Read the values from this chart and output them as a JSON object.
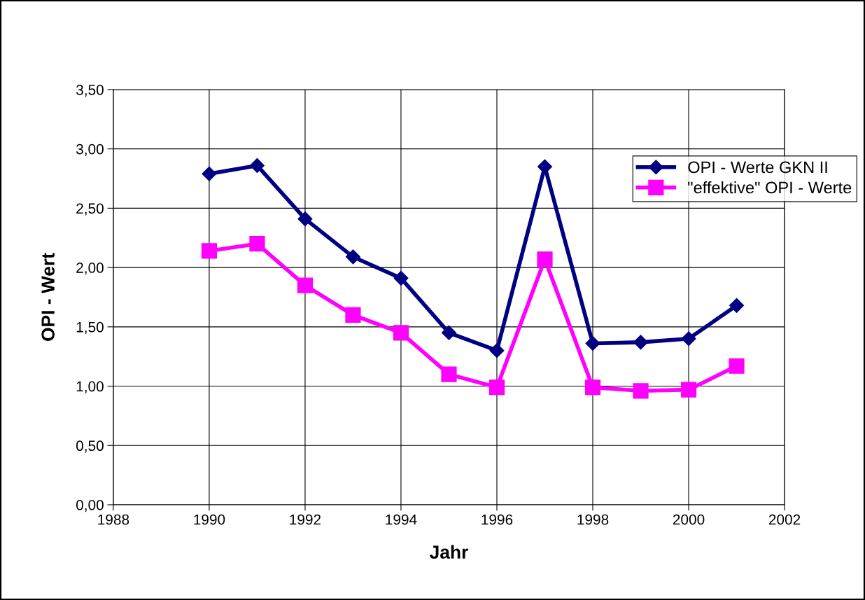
{
  "chart_data": {
    "type": "line",
    "xlabel": "Jahr",
    "ylabel": "OPI - Wert",
    "x": [
      1990,
      1991,
      1992,
      1993,
      1994,
      1995,
      1996,
      1997,
      1998,
      1999,
      2000,
      2001
    ],
    "series": [
      {
        "name": "OPI - Werte GKN II",
        "color": "#000080",
        "marker": "diamond",
        "values": [
          2.79,
          2.86,
          2.41,
          2.09,
          1.91,
          1.45,
          1.3,
          2.85,
          1.36,
          1.37,
          1.4,
          1.68
        ]
      },
      {
        "name": "\"effektive\" OPI - Werte",
        "color": "#ff00ff",
        "marker": "square",
        "values": [
          2.14,
          2.2,
          1.85,
          1.6,
          1.45,
          1.1,
          0.99,
          2.07,
          0.99,
          0.96,
          0.97,
          1.17
        ]
      }
    ],
    "xlim": [
      1988,
      2002
    ],
    "xticks": [
      1988,
      1990,
      1992,
      1994,
      1996,
      1998,
      2000,
      2002
    ],
    "ylim": [
      0,
      3.5
    ],
    "yticks": [
      {
        "value": 0,
        "label": "0,00"
      },
      {
        "value": 0.5,
        "label": "0,50"
      },
      {
        "value": 1,
        "label": "1,00"
      },
      {
        "value": 1.5,
        "label": "1,50"
      },
      {
        "value": 2,
        "label": "2,00"
      },
      {
        "value": 2.5,
        "label": "2,50"
      },
      {
        "value": 3,
        "label": "3,00"
      },
      {
        "value": 3.5,
        "label": "3,50"
      }
    ],
    "grid": true,
    "legend": "top right",
    "line_style": "solid"
  }
}
